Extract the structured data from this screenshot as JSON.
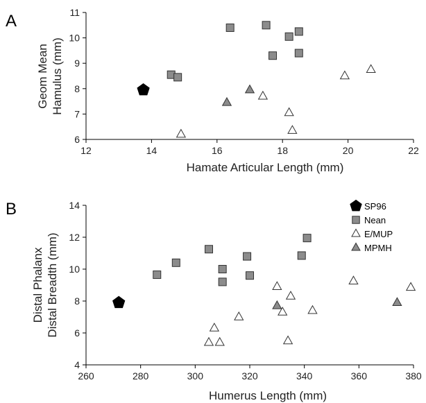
{
  "legend": {
    "placement": "top-right of panel B",
    "entries": [
      {
        "series": "SP96",
        "label": "SP96"
      },
      {
        "series": "Nean",
        "label": "Nean"
      },
      {
        "series": "E/MUP",
        "label": "E/MUP"
      },
      {
        "series": "MPMH",
        "label": "MPMH"
      }
    ]
  },
  "series_styles": {
    "SP96": {
      "marker": "pentagon",
      "fill": "#000000",
      "stroke": "#000000"
    },
    "Nean": {
      "marker": "square",
      "fill": "#8c8c8c",
      "stroke": "#333333"
    },
    "E/MUP": {
      "marker": "triangle",
      "fill": "#ffffff",
      "stroke": "#333333"
    },
    "MPMH": {
      "marker": "triangle",
      "fill": "#8c8c8c",
      "stroke": "#333333"
    }
  },
  "chart_data": [
    {
      "panel": "A",
      "type": "scatter",
      "xlabel": "Hamate Articular Length (mm)",
      "ylabel_lines": [
        "Geom Mean",
        "Hamulus  (mm)"
      ],
      "xlim": [
        12,
        22
      ],
      "ylim": [
        6,
        11
      ],
      "xticks": [
        12,
        14,
        16,
        18,
        20,
        22
      ],
      "yticks": [
        6,
        7,
        8,
        9,
        10,
        11
      ],
      "grid": false,
      "series": [
        {
          "name": "SP96",
          "points": [
            [
              13.75,
              7.95
            ]
          ]
        },
        {
          "name": "Nean",
          "points": [
            [
              14.6,
              8.55
            ],
            [
              14.8,
              8.45
            ],
            [
              16.4,
              10.4
            ],
            [
              17.5,
              10.5
            ],
            [
              17.7,
              9.3
            ],
            [
              18.2,
              10.05
            ],
            [
              18.5,
              10.25
            ],
            [
              18.5,
              9.4
            ]
          ]
        },
        {
          "name": "E/MUP",
          "points": [
            [
              14.9,
              6.2
            ],
            [
              17.4,
              7.7
            ],
            [
              18.2,
              7.05
            ],
            [
              18.3,
              6.35
            ],
            [
              19.9,
              8.5
            ],
            [
              20.7,
              8.75
            ]
          ]
        },
        {
          "name": "MPMH",
          "points": [
            [
              16.3,
              7.45
            ],
            [
              17.0,
              7.95
            ]
          ]
        }
      ]
    },
    {
      "panel": "B",
      "type": "scatter",
      "xlabel": "Humerus Length (mm)",
      "ylabel_lines": [
        "Distal Phalanx",
        "Distal Breadth (mm)"
      ],
      "xlim": [
        260,
        380
      ],
      "ylim": [
        4,
        14
      ],
      "xticks": [
        260,
        280,
        300,
        320,
        340,
        360,
        380
      ],
      "yticks": [
        4,
        6,
        8,
        10,
        12,
        14
      ],
      "grid": false,
      "series": [
        {
          "name": "SP96",
          "points": [
            [
              272,
              7.9
            ]
          ]
        },
        {
          "name": "Nean",
          "points": [
            [
              286,
              9.65
            ],
            [
              293,
              10.4
            ],
            [
              305,
              11.25
            ],
            [
              310,
              10.0
            ],
            [
              310,
              9.2
            ],
            [
              319,
              10.8
            ],
            [
              320,
              9.6
            ],
            [
              339,
              10.85
            ],
            [
              341,
              11.95
            ]
          ]
        },
        {
          "name": "E/MUP",
          "points": [
            [
              305,
              5.4
            ],
            [
              307,
              6.3
            ],
            [
              309,
              5.4
            ],
            [
              316,
              7.0
            ],
            [
              330,
              8.9
            ],
            [
              332,
              7.3
            ],
            [
              334,
              5.5
            ],
            [
              335,
              8.3
            ],
            [
              343,
              7.4
            ],
            [
              358,
              9.25
            ],
            [
              379,
              8.85
            ]
          ]
        },
        {
          "name": "MPMH",
          "points": [
            [
              330,
              7.7
            ],
            [
              374,
              7.9
            ]
          ]
        }
      ]
    }
  ]
}
